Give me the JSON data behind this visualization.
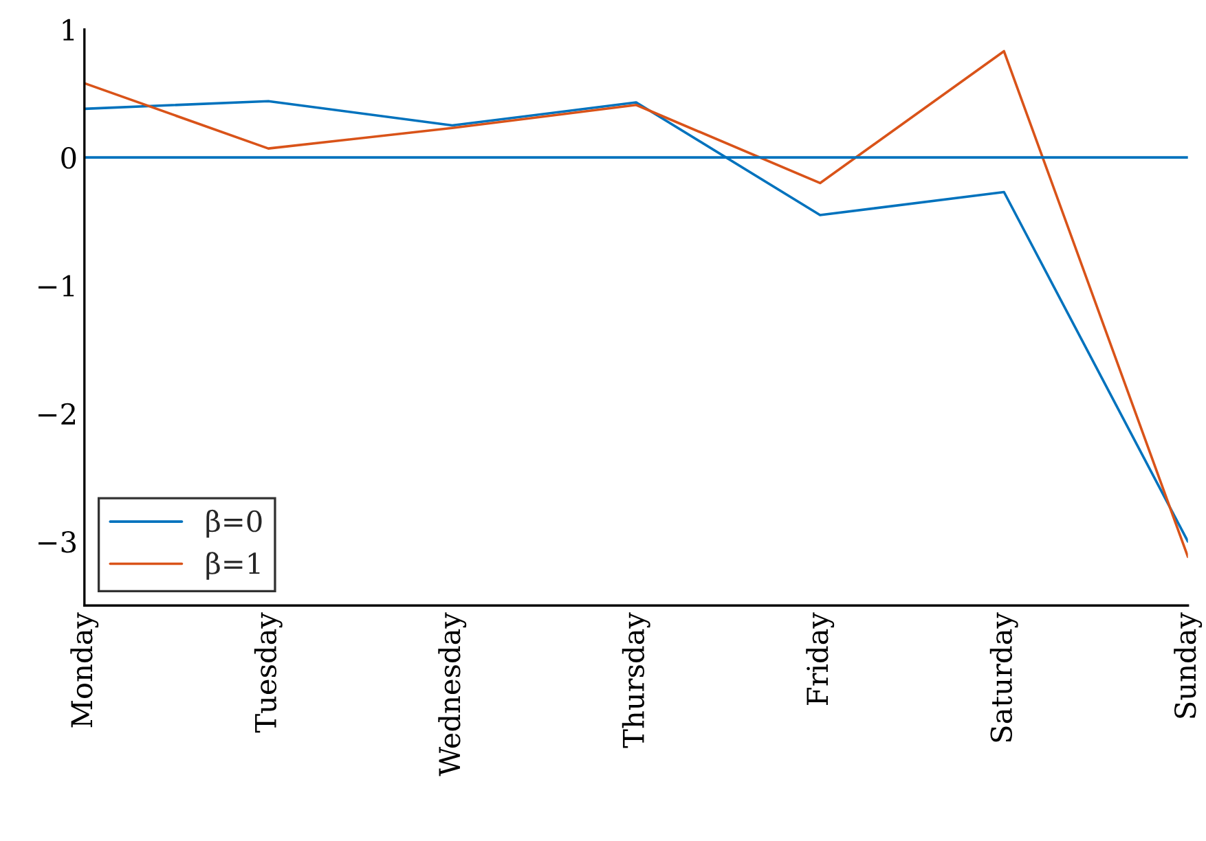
{
  "chart_data": {
    "type": "line",
    "categories": [
      "Monday",
      "Tuesday",
      "Wednesday",
      "Thursday",
      "Friday",
      "Saturday",
      "Sunday"
    ],
    "series": [
      {
        "name": "β=0",
        "color": "#0072bd",
        "values": [
          0.38,
          0.44,
          0.25,
          0.43,
          -0.45,
          -0.27,
          -3.0
        ]
      },
      {
        "name": "β=1",
        "color": "#d95319",
        "values": [
          0.58,
          0.07,
          0.23,
          0.41,
          -0.2,
          0.83,
          -3.12
        ]
      }
    ],
    "ylim": [
      -3.5,
      1
    ],
    "yticks": [
      {
        "value": -3,
        "label": "−3"
      },
      {
        "value": -2,
        "label": "−2"
      },
      {
        "value": -1,
        "label": "−1"
      },
      0,
      1
    ],
    "ref_lines": [
      {
        "axis": "y",
        "value": 0,
        "color": "#0072bd"
      }
    ],
    "legend": "bottom left",
    "grid": false,
    "marker": "none",
    "line_style": "solid"
  }
}
